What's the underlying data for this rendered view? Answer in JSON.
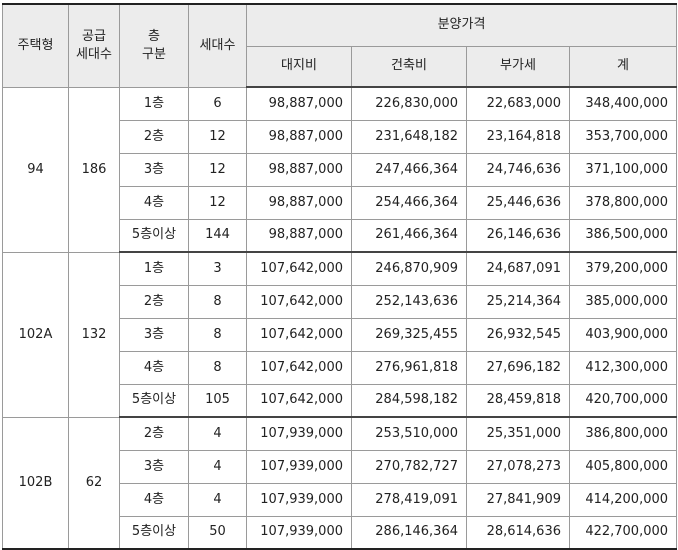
{
  "headers": {
    "type": "주택형",
    "supply_units": "공급\n세대수",
    "floor": "층\n구분",
    "units": "세대수",
    "price_group": "분양가격",
    "land": "대지비",
    "building": "건축비",
    "vat": "부가세",
    "total": "계"
  },
  "groups": [
    {
      "type": "94",
      "supply": "186",
      "rows": [
        {
          "floor": "1층",
          "units": "6",
          "land": "98,887,000",
          "building": "226,830,000",
          "vat": "22,683,000",
          "total": "348,400,000"
        },
        {
          "floor": "2층",
          "units": "12",
          "land": "98,887,000",
          "building": "231,648,182",
          "vat": "23,164,818",
          "total": "353,700,000"
        },
        {
          "floor": "3층",
          "units": "12",
          "land": "98,887,000",
          "building": "247,466,364",
          "vat": "24,746,636",
          "total": "371,100,000"
        },
        {
          "floor": "4층",
          "units": "12",
          "land": "98,887,000",
          "building": "254,466,364",
          "vat": "25,446,636",
          "total": "378,800,000"
        },
        {
          "floor": "5층이상",
          "units": "144",
          "land": "98,887,000",
          "building": "261,466,364",
          "vat": "26,146,636",
          "total": "386,500,000"
        }
      ]
    },
    {
      "type": "102A",
      "supply": "132",
      "rows": [
        {
          "floor": "1층",
          "units": "3",
          "land": "107,642,000",
          "building": "246,870,909",
          "vat": "24,687,091",
          "total": "379,200,000"
        },
        {
          "floor": "2층",
          "units": "8",
          "land": "107,642,000",
          "building": "252,143,636",
          "vat": "25,214,364",
          "total": "385,000,000"
        },
        {
          "floor": "3층",
          "units": "8",
          "land": "107,642,000",
          "building": "269,325,455",
          "vat": "26,932,545",
          "total": "403,900,000"
        },
        {
          "floor": "4층",
          "units": "8",
          "land": "107,642,000",
          "building": "276,961,818",
          "vat": "27,696,182",
          "total": "412,300,000"
        },
        {
          "floor": "5층이상",
          "units": "105",
          "land": "107,642,000",
          "building": "284,598,182",
          "vat": "28,459,818",
          "total": "420,700,000"
        }
      ]
    },
    {
      "type": "102B",
      "supply": "62",
      "rows": [
        {
          "floor": "2층",
          "units": "4",
          "land": "107,939,000",
          "building": "253,510,000",
          "vat": "25,351,000",
          "total": "386,800,000"
        },
        {
          "floor": "3층",
          "units": "4",
          "land": "107,939,000",
          "building": "270,782,727",
          "vat": "27,078,273",
          "total": "405,800,000"
        },
        {
          "floor": "4층",
          "units": "4",
          "land": "107,939,000",
          "building": "278,419,091",
          "vat": "27,841,909",
          "total": "414,200,000"
        },
        {
          "floor": "5층이상",
          "units": "50",
          "land": "107,939,000",
          "building": "286,146,364",
          "vat": "28,614,636",
          "total": "422,700,000"
        }
      ]
    }
  ]
}
